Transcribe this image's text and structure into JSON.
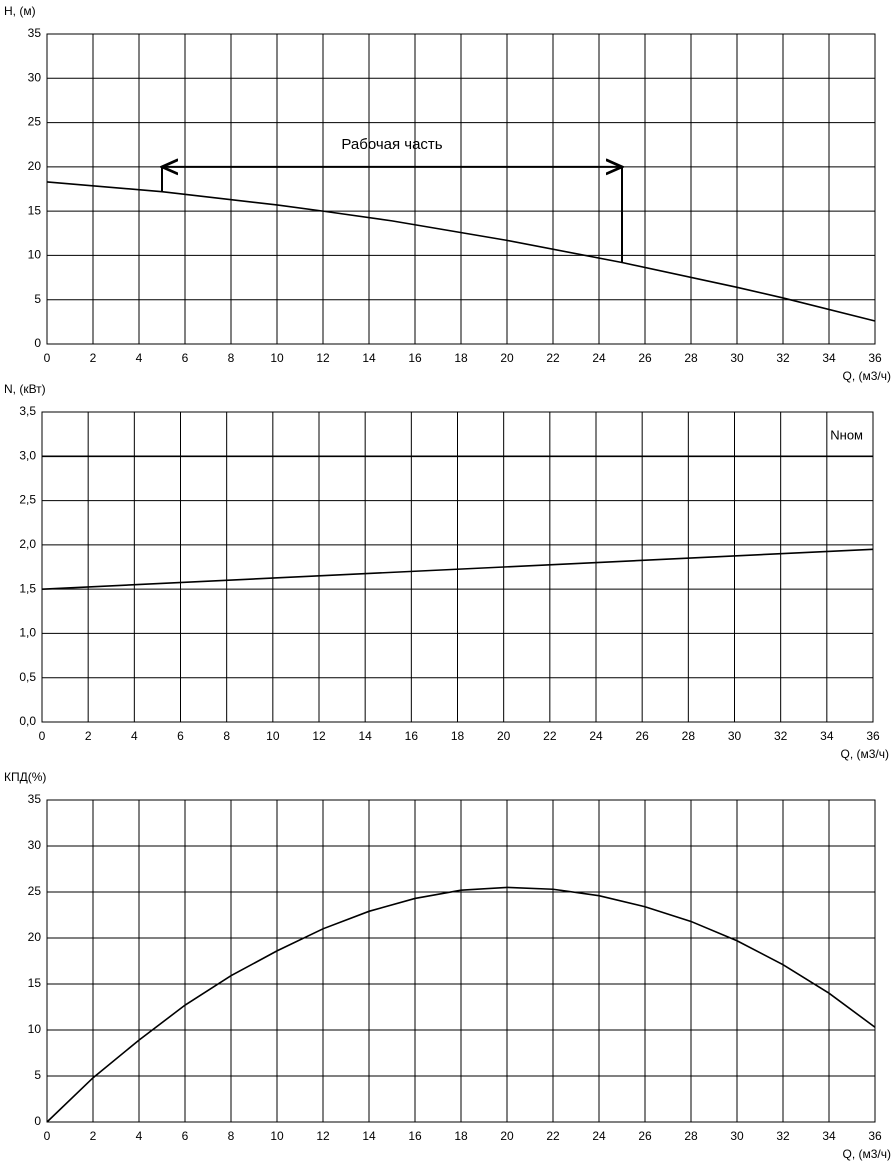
{
  "chart_data": [
    {
      "type": "line",
      "y_label": "H, (м)",
      "x_label": "Q, (м3/ч)",
      "x": [
        0,
        5,
        10,
        12,
        15,
        20,
        25,
        30,
        32,
        36
      ],
      "series": [
        {
          "color": "#000000",
          "values": [
            18.3,
            17.2,
            15.7,
            15.0,
            13.9,
            11.7,
            9.2,
            6.4,
            5.2,
            2.6
          ]
        }
      ],
      "xlim": [
        0,
        36
      ],
      "xticks": [
        0,
        2,
        4,
        6,
        8,
        10,
        12,
        14,
        16,
        18,
        20,
        22,
        24,
        26,
        28,
        30,
        32,
        34,
        36
      ],
      "ylim": [
        0,
        35
      ],
      "yticks": [
        0,
        5,
        10,
        15,
        20,
        25,
        30,
        35
      ],
      "grid": true,
      "annotation": {
        "text": "Рабочая часть",
        "x": [
          5,
          25
        ],
        "y": 20
      }
    },
    {
      "type": "line",
      "y_label": "N, (кВт)",
      "x_label": "Q, (м3/ч)",
      "x": [
        0,
        36
      ],
      "series": [
        {
          "color": "#000000",
          "values": [
            1.5,
            1.95
          ]
        },
        {
          "name": "Nном",
          "color": "#000000",
          "values": [
            3.0,
            3.0
          ]
        }
      ],
      "xlim": [
        0,
        36
      ],
      "xticks": [
        0,
        2,
        4,
        6,
        8,
        10,
        12,
        14,
        16,
        18,
        20,
        22,
        24,
        26,
        28,
        30,
        32,
        34,
        36
      ],
      "ylim": [
        0,
        3.5
      ],
      "yticks": [
        {
          "value": 0,
          "label": "0,0"
        },
        {
          "value": 0.5,
          "label": "0,5"
        },
        {
          "value": 1,
          "label": "1,0"
        },
        {
          "value": 1.5,
          "label": "1,5"
        },
        {
          "value": 2,
          "label": "2,0"
        },
        {
          "value": 2.5,
          "label": "2,5"
        },
        {
          "value": 3,
          "label": "3,0"
        },
        {
          "value": 3.5,
          "label": "3,5"
        }
      ],
      "grid": true
    },
    {
      "type": "line",
      "y_label": "КПД(%)",
      "x_label": "Q, (м3/ч)",
      "x": [
        0,
        2,
        4,
        6,
        8,
        10,
        12,
        14,
        16,
        18,
        20,
        22,
        24,
        26,
        28,
        30,
        32,
        34,
        36
      ],
      "series": [
        {
          "color": "#000000",
          "values": [
            0,
            4.8,
            8.9,
            12.7,
            15.9,
            18.6,
            21.0,
            22.9,
            24.3,
            25.2,
            25.5,
            25.3,
            24.6,
            23.4,
            21.8,
            19.7,
            17.1,
            14.0,
            10.3
          ]
        }
      ],
      "xlim": [
        0,
        36
      ],
      "xticks": [
        0,
        2,
        4,
        6,
        8,
        10,
        12,
        14,
        16,
        18,
        20,
        22,
        24,
        26,
        28,
        30,
        32,
        34,
        36
      ],
      "ylim": [
        0,
        35
      ],
      "yticks": [
        0,
        5,
        10,
        15,
        20,
        25,
        30,
        35
      ],
      "grid": true
    }
  ]
}
